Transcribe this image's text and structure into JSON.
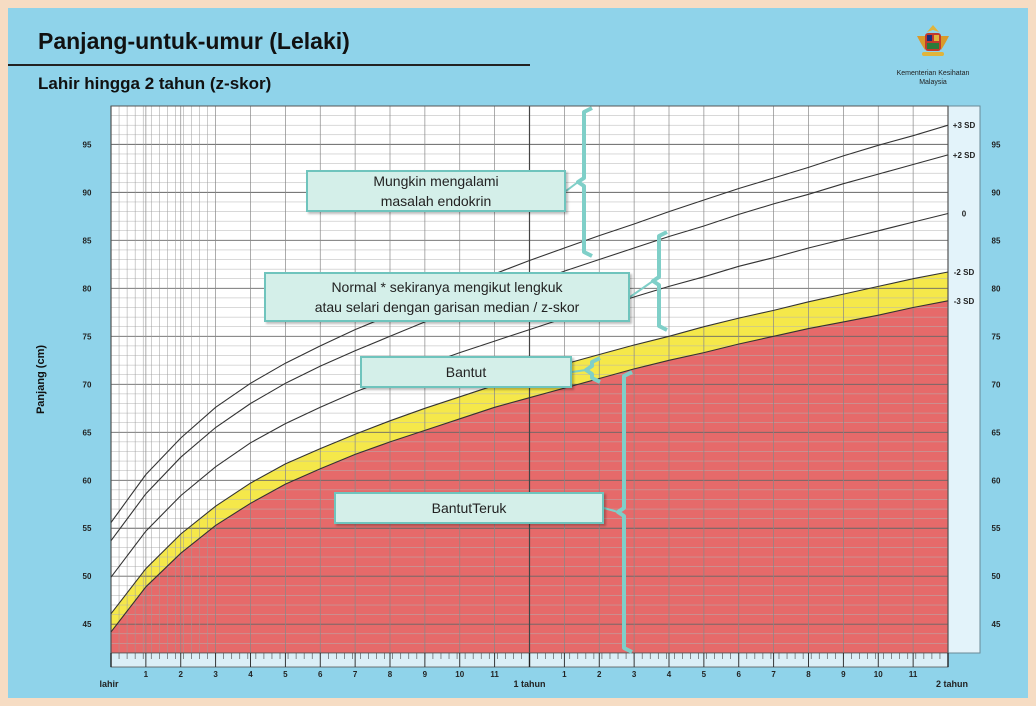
{
  "title": "Panjang-untuk-umur (Lelaki)",
  "subtitle": "Lahir hingga 2 tahun (z-skor)",
  "logo": {
    "icon": "coat-of-arms-icon",
    "text_line1": "Kementerian Kesihatan",
    "text_line2": "Malaysia"
  },
  "colors": {
    "background": "#8fd3ea",
    "severe": "#e66a6a",
    "stunted": "#f5e84a",
    "bracket": "#7fcfc8",
    "callout_bg": "#d4efe9",
    "plot_bg": "#ffffff"
  },
  "callouts": [
    {
      "id": "endocrine",
      "line1": "Mungkin mengalami",
      "line2": "masalah endokrin"
    },
    {
      "id": "normal",
      "line1": "Normal * sekiranya mengikut lengkuk",
      "line2": "atau selari dengan garisan median / z-skor"
    },
    {
      "id": "stunted",
      "line1": "Bantut",
      "line2": ""
    },
    {
      "id": "severe",
      "line1": "BantutTeruk",
      "line2": ""
    }
  ],
  "chart_data": {
    "type": "line",
    "title": "Panjang-untuk-umur (Lelaki)",
    "subtitle": "Lahir hingga 2 tahun (z-skor)",
    "ylabel": "Panjang (cm)",
    "xlabel": "",
    "x_unit": "months",
    "xlim": [
      0,
      24
    ],
    "ylim": [
      42,
      99
    ],
    "y_ticks": [
      45,
      50,
      55,
      60,
      65,
      70,
      75,
      80,
      85,
      90,
      95
    ],
    "x_tick_labels": [
      {
        "x": 0,
        "label": "lahir"
      },
      {
        "x": 1,
        "label": "1"
      },
      {
        "x": 2,
        "label": "2"
      },
      {
        "x": 3,
        "label": "3"
      },
      {
        "x": 4,
        "label": "4"
      },
      {
        "x": 5,
        "label": "5"
      },
      {
        "x": 6,
        "label": "6"
      },
      {
        "x": 7,
        "label": "7"
      },
      {
        "x": 8,
        "label": "8"
      },
      {
        "x": 9,
        "label": "9"
      },
      {
        "x": 10,
        "label": "10"
      },
      {
        "x": 11,
        "label": "11"
      },
      {
        "x": 12,
        "label": "1 tahun"
      },
      {
        "x": 13,
        "label": "1"
      },
      {
        "x": 14,
        "label": "2"
      },
      {
        "x": 15,
        "label": "3"
      },
      {
        "x": 16,
        "label": "4"
      },
      {
        "x": 17,
        "label": "5"
      },
      {
        "x": 18,
        "label": "6"
      },
      {
        "x": 19,
        "label": "7"
      },
      {
        "x": 20,
        "label": "8"
      },
      {
        "x": 21,
        "label": "9"
      },
      {
        "x": 22,
        "label": "10"
      },
      {
        "x": 23,
        "label": "11"
      },
      {
        "x": 24,
        "label": "2 tahun"
      }
    ],
    "x": [
      0,
      1,
      2,
      3,
      4,
      5,
      6,
      7,
      8,
      9,
      10,
      11,
      12,
      13,
      14,
      15,
      16,
      17,
      18,
      19,
      20,
      21,
      22,
      23,
      24
    ],
    "series": [
      {
        "name": "+3 SD",
        "values": [
          55.6,
          60.6,
          64.4,
          67.6,
          70.1,
          72.2,
          74.0,
          75.7,
          77.2,
          78.7,
          80.1,
          81.5,
          82.9,
          84.2,
          85.5,
          86.7,
          88.0,
          89.2,
          90.4,
          91.5,
          92.6,
          93.8,
          94.9,
          95.9,
          97.0
        ]
      },
      {
        "name": "+2 SD",
        "values": [
          53.7,
          58.6,
          62.4,
          65.5,
          68.0,
          70.1,
          71.9,
          73.5,
          75.0,
          76.5,
          77.9,
          79.2,
          80.5,
          81.8,
          83.0,
          84.2,
          85.4,
          86.5,
          87.7,
          88.8,
          89.8,
          90.9,
          91.9,
          92.9,
          93.9
        ]
      },
      {
        "name": "0",
        "values": [
          49.9,
          54.7,
          58.4,
          61.4,
          63.9,
          65.9,
          67.6,
          69.2,
          70.6,
          72.0,
          73.3,
          74.5,
          75.7,
          76.9,
          78.0,
          79.1,
          80.2,
          81.2,
          82.3,
          83.2,
          84.2,
          85.1,
          86.0,
          86.9,
          87.8
        ]
      },
      {
        "name": "-2 SD",
        "values": [
          46.1,
          50.8,
          54.4,
          57.3,
          59.7,
          61.7,
          63.3,
          64.8,
          66.2,
          67.5,
          68.7,
          69.9,
          71.0,
          72.1,
          73.1,
          74.1,
          75.0,
          76.0,
          76.9,
          77.7,
          78.6,
          79.4,
          80.2,
          81.0,
          81.7
        ]
      },
      {
        "name": "-3 SD",
        "values": [
          44.2,
          48.9,
          52.4,
          55.3,
          57.6,
          59.6,
          61.2,
          62.7,
          64.0,
          65.2,
          66.4,
          67.6,
          68.6,
          69.6,
          70.6,
          71.6,
          72.5,
          73.3,
          74.2,
          75.0,
          75.8,
          76.5,
          77.2,
          78.0,
          78.7
        ]
      }
    ],
    "right_labels": [
      "+3 SD",
      "+2 SD",
      "0",
      "-2 SD",
      "-3 SD"
    ],
    "bands": [
      {
        "label": "Bantut",
        "between": [
          "-3 SD",
          "-2 SD"
        ],
        "color": "#f5e84a"
      },
      {
        "label": "BantutTeruk",
        "below": "-3 SD",
        "color": "#e66a6a"
      }
    ],
    "grid": true
  }
}
